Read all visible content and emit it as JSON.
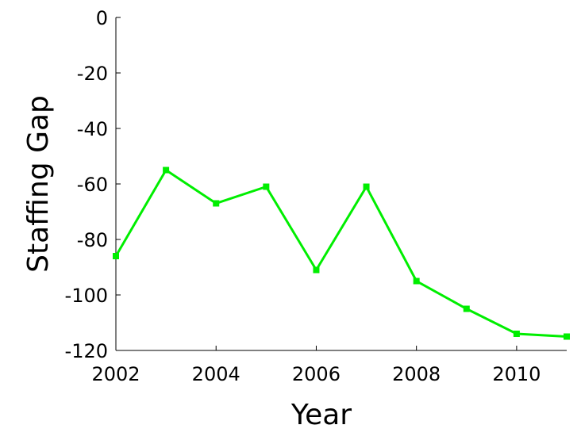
{
  "chart_data": {
    "type": "line",
    "x_label": "Year",
    "y_label": "Staffing Gap",
    "x": [
      2002,
      2003,
      2004,
      2005,
      2006,
      2007,
      2008,
      2009,
      2010,
      2011
    ],
    "series": [
      {
        "name": "Staffing Gap",
        "color": "#00ee00",
        "values": [
          -86,
          -55,
          -67,
          -61,
          -91,
          -61,
          -95,
          -105,
          -114,
          -115
        ]
      }
    ],
    "xlim": [
      2002,
      2011
    ],
    "xticks": [
      2002,
      2004,
      2006,
      2008,
      2010
    ],
    "ylim": [
      -120,
      0
    ],
    "yticks": [
      -120,
      -100,
      -80,
      -60,
      -40,
      -20,
      0
    ],
    "grid": false,
    "legend": false
  }
}
